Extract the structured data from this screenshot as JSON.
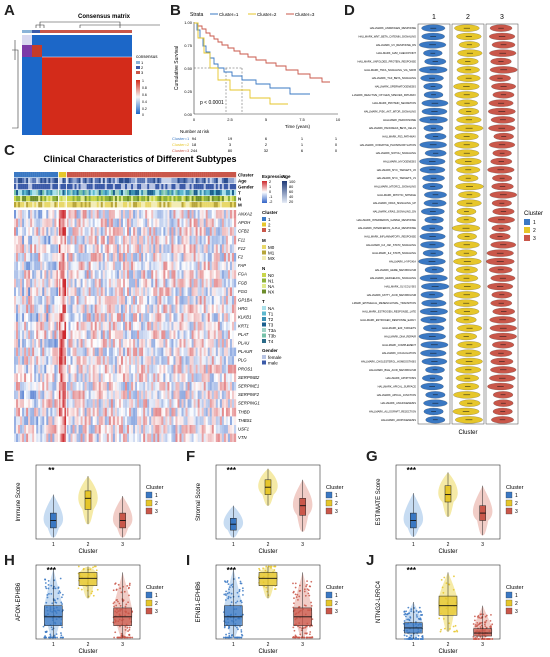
{
  "panels": {
    "A": "A",
    "B": "B",
    "C": "C",
    "D": "D",
    "E": "E",
    "F": "F",
    "G": "G",
    "H": "H",
    "I": "I",
    "J": "J"
  },
  "colors": {
    "c1": "#3a78c3",
    "c2": "#e6c62a",
    "c3": "#c9574a",
    "c1_light": "#c7dcf2",
    "c2_light": "#f5eaa6",
    "c3_light": "#f1cdc7"
  },
  "consensus": {
    "title": "Consensus matrix",
    "legend_title": "consensus",
    "legend_items": [
      "1",
      "2",
      "3"
    ],
    "scale_ticks": [
      "1",
      "0.8",
      "0.6",
      "0.4",
      "0.2",
      "0"
    ]
  },
  "km": {
    "strata_label": "Strata",
    "legend": [
      "Cluster=1",
      "Cluster=2",
      "Cluster=3"
    ],
    "ylabel": "Cumulative Survival",
    "xlabel": "Time (years)",
    "pvalue": "p < 0.0001",
    "risk_title": "Number at risk",
    "risk_rows": [
      {
        "label": "Cluster=1",
        "values": [
          "94",
          "19",
          "6",
          "1",
          "1"
        ]
      },
      {
        "label": "Cluster=2",
        "values": [
          "18",
          "3",
          "2",
          "1",
          "0"
        ]
      },
      {
        "label": "Cluster=3",
        "values": [
          "244",
          "80",
          "32",
          "6",
          "0"
        ]
      }
    ],
    "xticks": [
      "0",
      "2.5",
      "5",
      "7.5",
      "10"
    ],
    "yticks": [
      "1.00",
      "0.75",
      "0.50",
      "0.25",
      "0.00"
    ]
  },
  "heatmap": {
    "title": "Clinical Characteristics of Different Subtypes",
    "track_labels": [
      "Cluster",
      "Age",
      "Gender",
      "T",
      "N",
      "M"
    ],
    "genes": [
      "ANXA2",
      "APOH",
      "CFB2",
      "F11",
      "F12",
      "F2",
      "FAP",
      "FGA",
      "FGB",
      "FGG",
      "GP1BA",
      "HRG",
      "KLKB1",
      "KRT1",
      "PLAT",
      "PLAU",
      "PLAUR",
      "PLG",
      "PROS1",
      "SERPINB2",
      "SERPINE1",
      "SERPINF2",
      "SERPING1",
      "THBD",
      "THBS1",
      "USF1",
      "VTN"
    ],
    "legend": {
      "expression_title": "Expression",
      "expression_ticks": [
        "2",
        "1",
        "0",
        "-1",
        "-2"
      ],
      "age_title": "Age",
      "age_ticks": [
        "100",
        "80",
        "60",
        "40",
        "20"
      ],
      "cluster_title": "Cluster",
      "cluster_items": [
        "1",
        "2",
        "3"
      ],
      "m_title": "M",
      "m_items": [
        "M0",
        "M1",
        "MX"
      ],
      "n_title": "N",
      "n_items": [
        "N0",
        "N1",
        "NA",
        "NX"
      ],
      "t_title": "T",
      "t_items": [
        "NA",
        "T1",
        "T2",
        "T3",
        "T3a",
        "T3b",
        "T4"
      ],
      "gender_title": "Gender",
      "gender_items": [
        "female",
        "male"
      ]
    }
  },
  "hallmark": {
    "columns": [
      "1",
      "2",
      "3"
    ],
    "xlabel": "Cluster",
    "legend_title": "Cluster",
    "legend_items": [
      "1",
      "2",
      "3"
    ],
    "pathways": [
      "HALLMARK_ANDROGEN_RESPONSE",
      "HALLMARK_WNT_BETA_CATENIN_SIGNALING",
      "HALLMARK_UV_RESPONSE_DN",
      "HALLMARK_G2M_CHECKPOINT",
      "HALLMARK_UNFOLDED_PROTEIN_RESPONSE",
      "HALLMARK_TNFA_SIGNALING_VIA_NFKB",
      "HALLMARK_TGF_BETA_SIGNALING",
      "HALLMARK_SPERMATOGENESIS",
      "HALLMARK_REACTIVE_OXYGEN_SPECIES_PATHWAY",
      "HALLMARK_PROTEIN_SECRETION",
      "HALLMARK_PI3K_AKT_MTOR_SIGNALING",
      "HALLMARK_PEROXISOME",
      "HALLMARK_PANCREAS_BETA_CELLS",
      "HALLMARK_P53_PATHWAY",
      "HALLMARK_OXIDATIVE_PHOSPHORYLATION",
      "HALLMARK_NOTCH_SIGNALING",
      "HALLMARK_MYOGENESIS",
      "HALLMARK_MYC_TARGETS_V2",
      "HALLMARK_MYC_TARGETS_V1",
      "HALLMARK_MTORC1_SIGNALING",
      "HALLMARK_MITOTIC_SPINDLE",
      "HALLMARK_KRAS_SIGNALING_UP",
      "HALLMARK_KRAS_SIGNALING_DN",
      "HALLMARK_INTERFERON_GAMMA_RESPONSE",
      "HALLMARK_INTERFERON_ALPHA_RESPONSE",
      "HALLMARK_INFLAMMATORY_RESPONSE",
      "HALLMARK_IL6_JAK_STAT3_SIGNALING",
      "HALLMARK_IL2_STAT5_SIGNALING",
      "HALLMARK_HYPOXIA",
      "HALLMARK_HEME_METABOLISM",
      "HALLMARK_HEDGEHOG_SIGNALING",
      "HALLMARK_GLYCOLYSIS",
      "HALLMARK_FATTY_ACID_METABOLISM",
      "HALLMARK_EPITHELIAL_MESENCHYMAL_TRANSITION",
      "HALLMARK_ESTROGEN_RESPONSE_LATE",
      "HALLMARK_ESTROGEN_RESPONSE_EARLY",
      "HALLMARK_E2F_TARGETS",
      "HALLMARK_DNA_REPAIR",
      "HALLMARK_COMPLEMENT",
      "HALLMARK_COAGULATION",
      "HALLMARK_CHOLESTEROL_HOMEOSTASIS",
      "HALLMARK_BILE_ACID_METABOLISM",
      "HALLMARK_APOPTOSIS",
      "HALLMARK_APICAL_SURFACE",
      "HALLMARK_APICAL_JUNCTION",
      "HALLMARK_ANGIOGENESIS",
      "HALLMARK_ALLOGRAFT_REJECTION",
      "HALLMARK_ADIPOGENESIS"
    ]
  },
  "chart_data": [
    {
      "panel": "E",
      "type": "violin+box",
      "categories": [
        "1",
        "2",
        "3"
      ],
      "ylabel": "Immune Score",
      "xlabel": "Cluster",
      "legend_title": "Cluster",
      "significance": "**",
      "medians": [
        0.25,
        0.55,
        0.25
      ],
      "q1": [
        0.15,
        0.4,
        0.15
      ],
      "q3": [
        0.35,
        0.65,
        0.35
      ],
      "min": [
        0.02,
        0.2,
        0.02
      ],
      "max": [
        0.6,
        0.85,
        0.58
      ]
    },
    {
      "panel": "F",
      "type": "violin+box",
      "categories": [
        "1",
        "2",
        "3"
      ],
      "ylabel": "Stromal Score",
      "xlabel": "Cluster",
      "legend_title": "Cluster",
      "significance": "***",
      "medians": [
        0.2,
        0.7,
        0.45
      ],
      "q1": [
        0.12,
        0.6,
        0.32
      ],
      "q3": [
        0.28,
        0.8,
        0.55
      ],
      "min": [
        0.02,
        0.45,
        0.1
      ],
      "max": [
        0.45,
        0.95,
        0.8
      ]
    },
    {
      "panel": "G",
      "type": "violin+box",
      "categories": [
        "1",
        "2",
        "3"
      ],
      "ylabel": "ESTIMATE Score",
      "xlabel": "Cluster",
      "legend_title": "Cluster",
      "significance": "***",
      "medians": [
        0.25,
        0.6,
        0.35
      ],
      "q1": [
        0.15,
        0.5,
        0.25
      ],
      "q3": [
        0.35,
        0.72,
        0.45
      ],
      "min": [
        0.03,
        0.3,
        0.05
      ],
      "max": [
        0.62,
        0.9,
        0.72
      ]
    },
    {
      "panel": "H",
      "type": "violin+box+jitter",
      "categories": [
        "1",
        "2",
        "3"
      ],
      "ylabel": "AFON-EPHB6",
      "xlabel": "Cluster",
      "legend_title": "Cluster",
      "significance": "***",
      "medians": [
        0.3,
        0.82,
        0.3
      ],
      "q1": [
        0.18,
        0.72,
        0.18
      ],
      "q3": [
        0.45,
        0.9,
        0.42
      ],
      "min": [
        0.02,
        0.55,
        0.02
      ],
      "max": [
        0.95,
        0.98,
        0.9
      ]
    },
    {
      "panel": "I",
      "type": "violin+box+jitter",
      "categories": [
        "1",
        "2",
        "3"
      ],
      "ylabel": "EFNB1-EPHB6",
      "xlabel": "Cluster",
      "legend_title": "Cluster",
      "significance": "***",
      "medians": [
        0.3,
        0.82,
        0.3
      ],
      "q1": [
        0.18,
        0.72,
        0.18
      ],
      "q3": [
        0.45,
        0.9,
        0.42
      ],
      "min": [
        0.02,
        0.55,
        0.02
      ],
      "max": [
        0.95,
        0.98,
        0.9
      ]
    },
    {
      "panel": "J",
      "type": "violin+box+jitter",
      "categories": [
        "1",
        "2",
        "3"
      ],
      "ylabel": "NTNG2-LRRC4",
      "xlabel": "Cluster",
      "legend_title": "Cluster",
      "significance": "***",
      "medians": [
        0.15,
        0.45,
        0.08
      ],
      "q1": [
        0.08,
        0.32,
        0.04
      ],
      "q3": [
        0.22,
        0.58,
        0.14
      ],
      "min": [
        0.0,
        0.1,
        0.0
      ],
      "max": [
        0.5,
        0.9,
        0.45
      ]
    }
  ]
}
